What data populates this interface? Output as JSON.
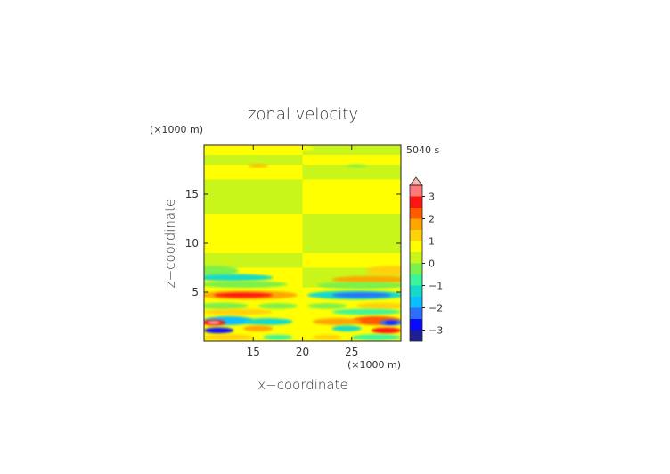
{
  "chart_data": {
    "type": "heatmap",
    "title": "zonal velocity",
    "xlabel": "x−coordinate",
    "ylabel": "z−coordinate",
    "x_unit_label": "(×1000 m)",
    "y_unit_label": "(×1000 m)",
    "time_label": "5040 s",
    "xlim": [
      10,
      30
    ],
    "ylim": [
      0,
      20
    ],
    "x_ticks": [
      15,
      20,
      25
    ],
    "y_ticks": [
      5,
      10,
      15
    ],
    "x_tick_labels": [
      "15",
      "20",
      "25"
    ],
    "y_tick_labels": [
      "5",
      "10",
      "15"
    ],
    "colorbar": {
      "levels": [
        -3.5,
        -3,
        -2.5,
        -2,
        -1.5,
        -1,
        -0.5,
        0,
        0.5,
        1,
        1.5,
        2,
        2.5,
        3,
        3.5
      ],
      "colors": [
        "#1e1e96",
        "#0a0aff",
        "#2d6efa",
        "#0abeff",
        "#17d9c9",
        "#3cf59b",
        "#7cf04c",
        "#c8f51a",
        "#ffff00",
        "#ffd20a",
        "#ffa500",
        "#ff5a00",
        "#ff1414",
        "#ff7878",
        "#ffb4b4"
      ],
      "tick_values": [
        3,
        2,
        1,
        0,
        -1,
        -2,
        -3
      ],
      "tick_labels": [
        "3",
        "2",
        "1",
        "0",
        "−1",
        "−2",
        "−3"
      ],
      "extend": "max"
    },
    "regions": [
      {
        "x": [
          10,
          20
        ],
        "y": [
          19,
          20
        ],
        "value": 0.5
      },
      {
        "x": [
          20,
          30
        ],
        "y": [
          19,
          20
        ],
        "value": 0.0
      },
      {
        "x": [
          10,
          20
        ],
        "y": [
          18,
          19
        ],
        "value": 0.0
      },
      {
        "x": [
          20,
          30
        ],
        "y": [
          18,
          19
        ],
        "value": 0.5
      },
      {
        "x": [
          10,
          20
        ],
        "y": [
          16.5,
          18
        ],
        "value": 0.5
      },
      {
        "x": [
          20,
          30
        ],
        "y": [
          16.5,
          18
        ],
        "value": 0.0
      },
      {
        "x": [
          10,
          20
        ],
        "y": [
          13,
          16.5
        ],
        "value": 0.0
      },
      {
        "x": [
          20,
          30
        ],
        "y": [
          13,
          16.5
        ],
        "value": 0.5
      },
      {
        "x": [
          10,
          20
        ],
        "y": [
          9,
          13
        ],
        "value": 0.5
      },
      {
        "x": [
          20,
          30
        ],
        "y": [
          9,
          13
        ],
        "value": 0.0
      },
      {
        "x": [
          10,
          20
        ],
        "y": [
          7.5,
          9
        ],
        "value": 0.0
      },
      {
        "x": [
          20,
          30
        ],
        "y": [
          7.5,
          9
        ],
        "value": 0.5
      },
      {
        "x": [
          10,
          20
        ],
        "y": [
          5.5,
          7.5
        ],
        "value": 0.5
      },
      {
        "x": [
          20,
          30
        ],
        "y": [
          5.5,
          7.5
        ],
        "value": 0.0
      },
      {
        "x": [
          10,
          30
        ],
        "y": [
          0,
          5.5
        ],
        "value": 0.5
      }
    ],
    "blobs": [
      {
        "x": 11,
        "y": 7.2,
        "rx": 2.5,
        "ry": 0.5,
        "value": -0.5
      },
      {
        "x": 13,
        "y": 6.5,
        "rx": 4,
        "ry": 0.35,
        "value": -1.5
      },
      {
        "x": 14,
        "y": 5.8,
        "rx": 4.5,
        "ry": 0.35,
        "value": -0.5
      },
      {
        "x": 14.5,
        "y": 4.7,
        "rx": 5,
        "ry": 0.45,
        "value": 1.5
      },
      {
        "x": 14,
        "y": 4.7,
        "rx": 3,
        "ry": 0.25,
        "value": 2.5
      },
      {
        "x": 12,
        "y": 3.6,
        "rx": 2.5,
        "ry": 0.35,
        "value": -0.5
      },
      {
        "x": 17.5,
        "y": 3.6,
        "rx": 2,
        "ry": 0.3,
        "value": -0.5
      },
      {
        "x": 13.5,
        "y": 3.0,
        "rx": 3.5,
        "ry": 0.3,
        "value": 1.0
      },
      {
        "x": 12.5,
        "y": 2.1,
        "rx": 2.5,
        "ry": 0.45,
        "value": -2.0
      },
      {
        "x": 11,
        "y": 1.9,
        "rx": 1.2,
        "ry": 0.3,
        "value": 2.5
      },
      {
        "x": 11,
        "y": 1.9,
        "rx": 0.6,
        "ry": 0.15,
        "value": 3.5
      },
      {
        "x": 16.5,
        "y": 2.0,
        "rx": 2.5,
        "ry": 0.35,
        "value": -1.5
      },
      {
        "x": 11.5,
        "y": 1.1,
        "rx": 1.5,
        "ry": 0.3,
        "value": -3.0
      },
      {
        "x": 15.5,
        "y": 1.3,
        "rx": 1.5,
        "ry": 0.3,
        "value": 1.5
      },
      {
        "x": 12.5,
        "y": 0.4,
        "rx": 2.5,
        "ry": 0.3,
        "value": 1.0
      },
      {
        "x": 17.5,
        "y": 0.4,
        "rx": 1.5,
        "ry": 0.25,
        "value": -1.0
      },
      {
        "x": 29,
        "y": 7.2,
        "rx": 2.5,
        "ry": 0.5,
        "value": 1.0
      },
      {
        "x": 27,
        "y": 6.3,
        "rx": 4,
        "ry": 0.35,
        "value": 1.5
      },
      {
        "x": 26,
        "y": 5.7,
        "rx": 4.5,
        "ry": 0.35,
        "value": -0.5
      },
      {
        "x": 25.5,
        "y": 4.7,
        "rx": 5,
        "ry": 0.45,
        "value": -1.5
      },
      {
        "x": 26,
        "y": 4.7,
        "rx": 3,
        "ry": 0.25,
        "value": -2.5
      },
      {
        "x": 28,
        "y": 3.6,
        "rx": 2.5,
        "ry": 0.35,
        "value": 1.0
      },
      {
        "x": 22.5,
        "y": 3.6,
        "rx": 2,
        "ry": 0.3,
        "value": -0.5
      },
      {
        "x": 26.5,
        "y": 3.0,
        "rx": 3.5,
        "ry": 0.3,
        "value": -1.0
      },
      {
        "x": 27.5,
        "y": 2.1,
        "rx": 2.5,
        "ry": 0.45,
        "value": 2.0
      },
      {
        "x": 29,
        "y": 1.9,
        "rx": 1.2,
        "ry": 0.3,
        "value": -2.5
      },
      {
        "x": 29,
        "y": 1.9,
        "rx": 0.6,
        "ry": 0.15,
        "value": -3.0
      },
      {
        "x": 23.5,
        "y": 2.0,
        "rx": 2.5,
        "ry": 0.35,
        "value": 1.5
      },
      {
        "x": 28.5,
        "y": 1.1,
        "rx": 1.5,
        "ry": 0.3,
        "value": 2.5
      },
      {
        "x": 24.5,
        "y": 1.3,
        "rx": 1.5,
        "ry": 0.3,
        "value": -1.5
      },
      {
        "x": 27.5,
        "y": 0.4,
        "rx": 2.5,
        "ry": 0.3,
        "value": -1.0
      },
      {
        "x": 22.5,
        "y": 0.4,
        "rx": 1.5,
        "ry": 0.25,
        "value": 1.0
      },
      {
        "x": 15.5,
        "y": 17.9,
        "rx": 1.0,
        "ry": 0.12,
        "value": 1.5
      },
      {
        "x": 25.5,
        "y": 17.9,
        "rx": 1.0,
        "ry": 0.12,
        "value": -0.5
      },
      {
        "x": 20,
        "y": 19.7,
        "rx": 1.2,
        "ry": 0.2,
        "value": 0.5
      }
    ]
  }
}
